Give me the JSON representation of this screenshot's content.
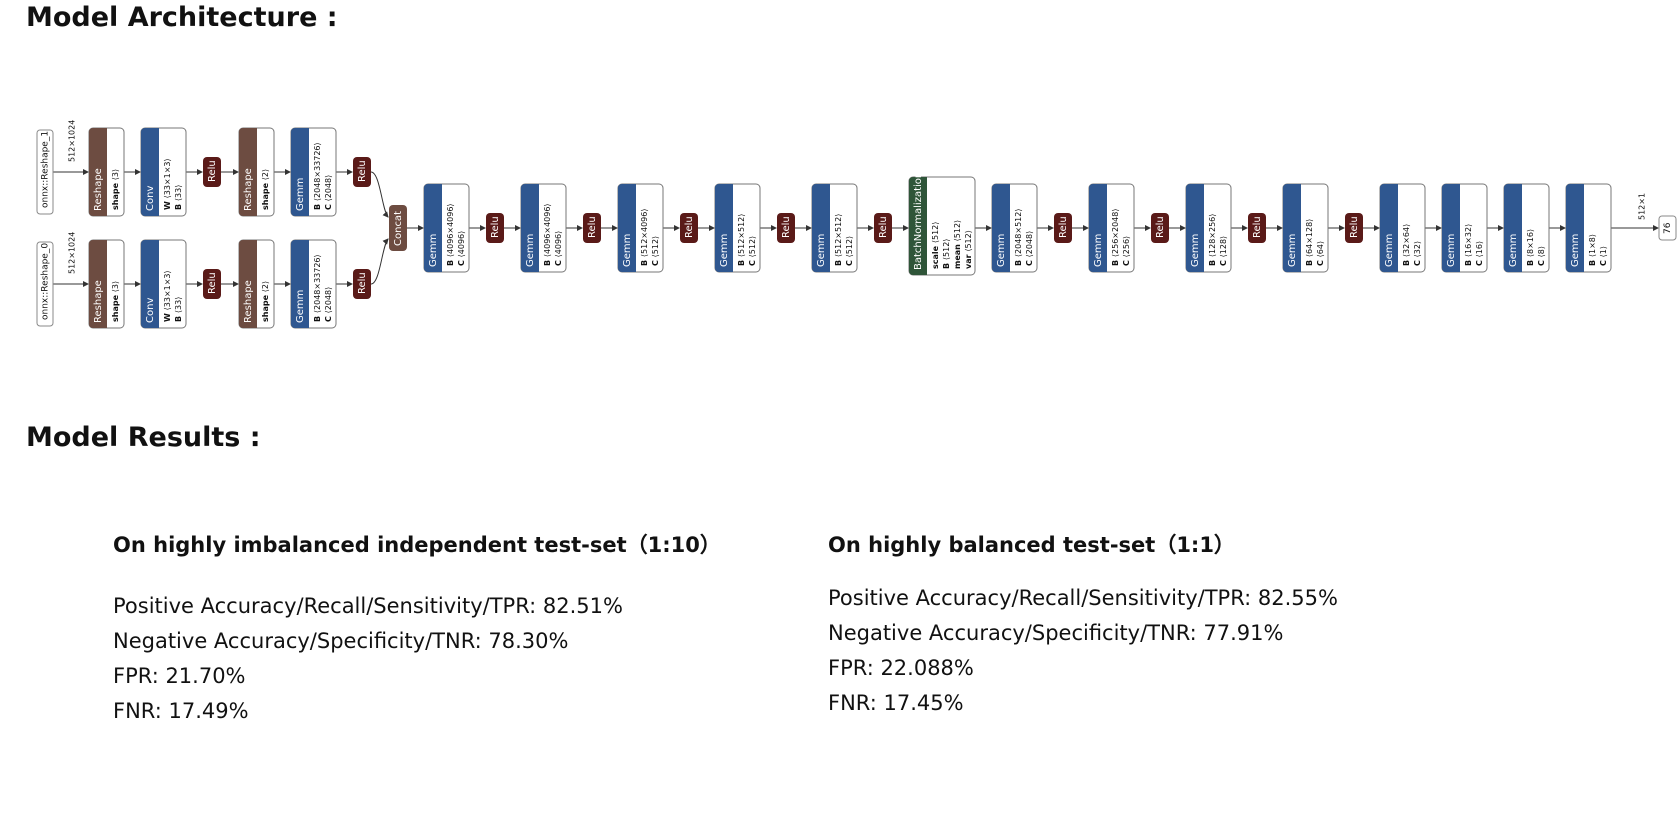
{
  "architecture_title": "Model Architecture :",
  "results_title": "Model Results :",
  "diagram": {
    "inputs": [
      {
        "label": "onnx::Reshape_1",
        "shape": "512×1024"
      },
      {
        "label": "onnx::Reshape_0",
        "shape": "512×1024"
      }
    ],
    "branch": [
      {
        "op": "Reshape",
        "kind": "reshape",
        "attrs": [
          {
            "k": "shape",
            "v": "⟨3⟩"
          }
        ]
      },
      {
        "op": "Conv",
        "kind": "gemm",
        "attrs": [
          {
            "k": "W",
            "v": "⟨33×1×3⟩"
          },
          {
            "k": "B",
            "v": "⟨33⟩"
          }
        ]
      },
      {
        "op": "Relu",
        "kind": "relu",
        "attrs": []
      },
      {
        "op": "Reshape",
        "kind": "reshape",
        "attrs": [
          {
            "k": "shape",
            "v": "⟨2⟩"
          }
        ]
      },
      {
        "op": "Gemm",
        "kind": "gemm",
        "attrs": [
          {
            "k": "B",
            "v": "⟨2048×33726⟩"
          },
          {
            "k": "C",
            "v": "⟨2048⟩"
          }
        ]
      },
      {
        "op": "Relu",
        "kind": "relu",
        "attrs": []
      }
    ],
    "concat": {
      "op": "Concat"
    },
    "main": [
      {
        "op": "Gemm",
        "kind": "gemm",
        "attrs": [
          {
            "k": "B",
            "v": "⟨4096×4096⟩"
          },
          {
            "k": "C",
            "v": "⟨4096⟩"
          }
        ]
      },
      {
        "op": "Relu",
        "kind": "relu",
        "attrs": []
      },
      {
        "op": "Gemm",
        "kind": "gemm",
        "attrs": [
          {
            "k": "B",
            "v": "⟨4096×4096⟩"
          },
          {
            "k": "C",
            "v": "⟨4096⟩"
          }
        ]
      },
      {
        "op": "Relu",
        "kind": "relu",
        "attrs": []
      },
      {
        "op": "Gemm",
        "kind": "gemm",
        "attrs": [
          {
            "k": "B",
            "v": "⟨512×4096⟩"
          },
          {
            "k": "C",
            "v": "⟨512⟩"
          }
        ]
      },
      {
        "op": "Relu",
        "kind": "relu",
        "attrs": []
      },
      {
        "op": "Gemm",
        "kind": "gemm",
        "attrs": [
          {
            "k": "B",
            "v": "⟨512×512⟩"
          },
          {
            "k": "C",
            "v": "⟨512⟩"
          }
        ]
      },
      {
        "op": "Relu",
        "kind": "relu",
        "attrs": []
      },
      {
        "op": "Gemm",
        "kind": "gemm",
        "attrs": [
          {
            "k": "B",
            "v": "⟨512×512⟩"
          },
          {
            "k": "C",
            "v": "⟨512⟩"
          }
        ]
      },
      {
        "op": "Relu",
        "kind": "relu",
        "attrs": []
      },
      {
        "op": "BatchNormalization",
        "kind": "bn",
        "attrs": [
          {
            "k": "scale",
            "v": "⟨512⟩"
          },
          {
            "k": "B",
            "v": "⟨512⟩"
          },
          {
            "k": "mean",
            "v": "⟨512⟩"
          },
          {
            "k": "var",
            "v": "⟨512⟩"
          }
        ]
      },
      {
        "op": "Gemm",
        "kind": "gemm",
        "attrs": [
          {
            "k": "B",
            "v": "⟨2048×512⟩"
          },
          {
            "k": "C",
            "v": "⟨2048⟩"
          }
        ]
      },
      {
        "op": "Relu",
        "kind": "relu",
        "attrs": []
      },
      {
        "op": "Gemm",
        "kind": "gemm",
        "attrs": [
          {
            "k": "B",
            "v": "⟨256×2048⟩"
          },
          {
            "k": "C",
            "v": "⟨256⟩"
          }
        ]
      },
      {
        "op": "Relu",
        "kind": "relu",
        "attrs": []
      },
      {
        "op": "Gemm",
        "kind": "gemm",
        "attrs": [
          {
            "k": "B",
            "v": "⟨128×256⟩"
          },
          {
            "k": "C",
            "v": "⟨128⟩"
          }
        ]
      },
      {
        "op": "Relu",
        "kind": "relu",
        "attrs": []
      },
      {
        "op": "Gemm",
        "kind": "gemm",
        "attrs": [
          {
            "k": "B",
            "v": "⟨64×128⟩"
          },
          {
            "k": "C",
            "v": "⟨64⟩"
          }
        ]
      },
      {
        "op": "Relu",
        "kind": "relu",
        "attrs": []
      },
      {
        "op": "Gemm",
        "kind": "gemm",
        "attrs": [
          {
            "k": "B",
            "v": "⟨32×64⟩"
          },
          {
            "k": "C",
            "v": "⟨32⟩"
          }
        ]
      },
      {
        "op": "Gemm",
        "kind": "gemm",
        "attrs": [
          {
            "k": "B",
            "v": "⟨16×32⟩"
          },
          {
            "k": "C",
            "v": "⟨16⟩"
          }
        ]
      },
      {
        "op": "Gemm",
        "kind": "gemm",
        "attrs": [
          {
            "k": "B",
            "v": "⟨8×16⟩"
          },
          {
            "k": "C",
            "v": "⟨8⟩"
          }
        ]
      },
      {
        "op": "Gemm",
        "kind": "gemm",
        "attrs": [
          {
            "k": "B",
            "v": "⟨1×8⟩"
          },
          {
            "k": "C",
            "v": "⟨1⟩"
          }
        ]
      }
    ],
    "output": {
      "label": "76",
      "shape": "512×1"
    },
    "colors": {
      "reshape": "#6d4c41",
      "gemm": "#2f5790",
      "relu": "#5a1a18",
      "bn": "#2f5539",
      "input_border": "#8a8a8a",
      "edge": "#333333"
    }
  },
  "results": {
    "imbalanced": {
      "heading": "On highly imbalanced independent test-set（1:10）",
      "metrics": [
        "Positive Accuracy/Recall/Sensitivity/TPR: 82.51%",
        "Negative Accuracy/Specificity/TNR: 78.30%",
        "FPR: 21.70%",
        "FNR: 17.49%"
      ]
    },
    "balanced": {
      "heading": "On highly balanced test-set（1:1）",
      "metrics": [
        "Positive Accuracy/Recall/Sensitivity/TPR: 82.55%",
        "Negative Accuracy/Specificity/TNR: 77.91%",
        "FPR: 22.088%",
        "FNR: 17.45%"
      ]
    }
  }
}
